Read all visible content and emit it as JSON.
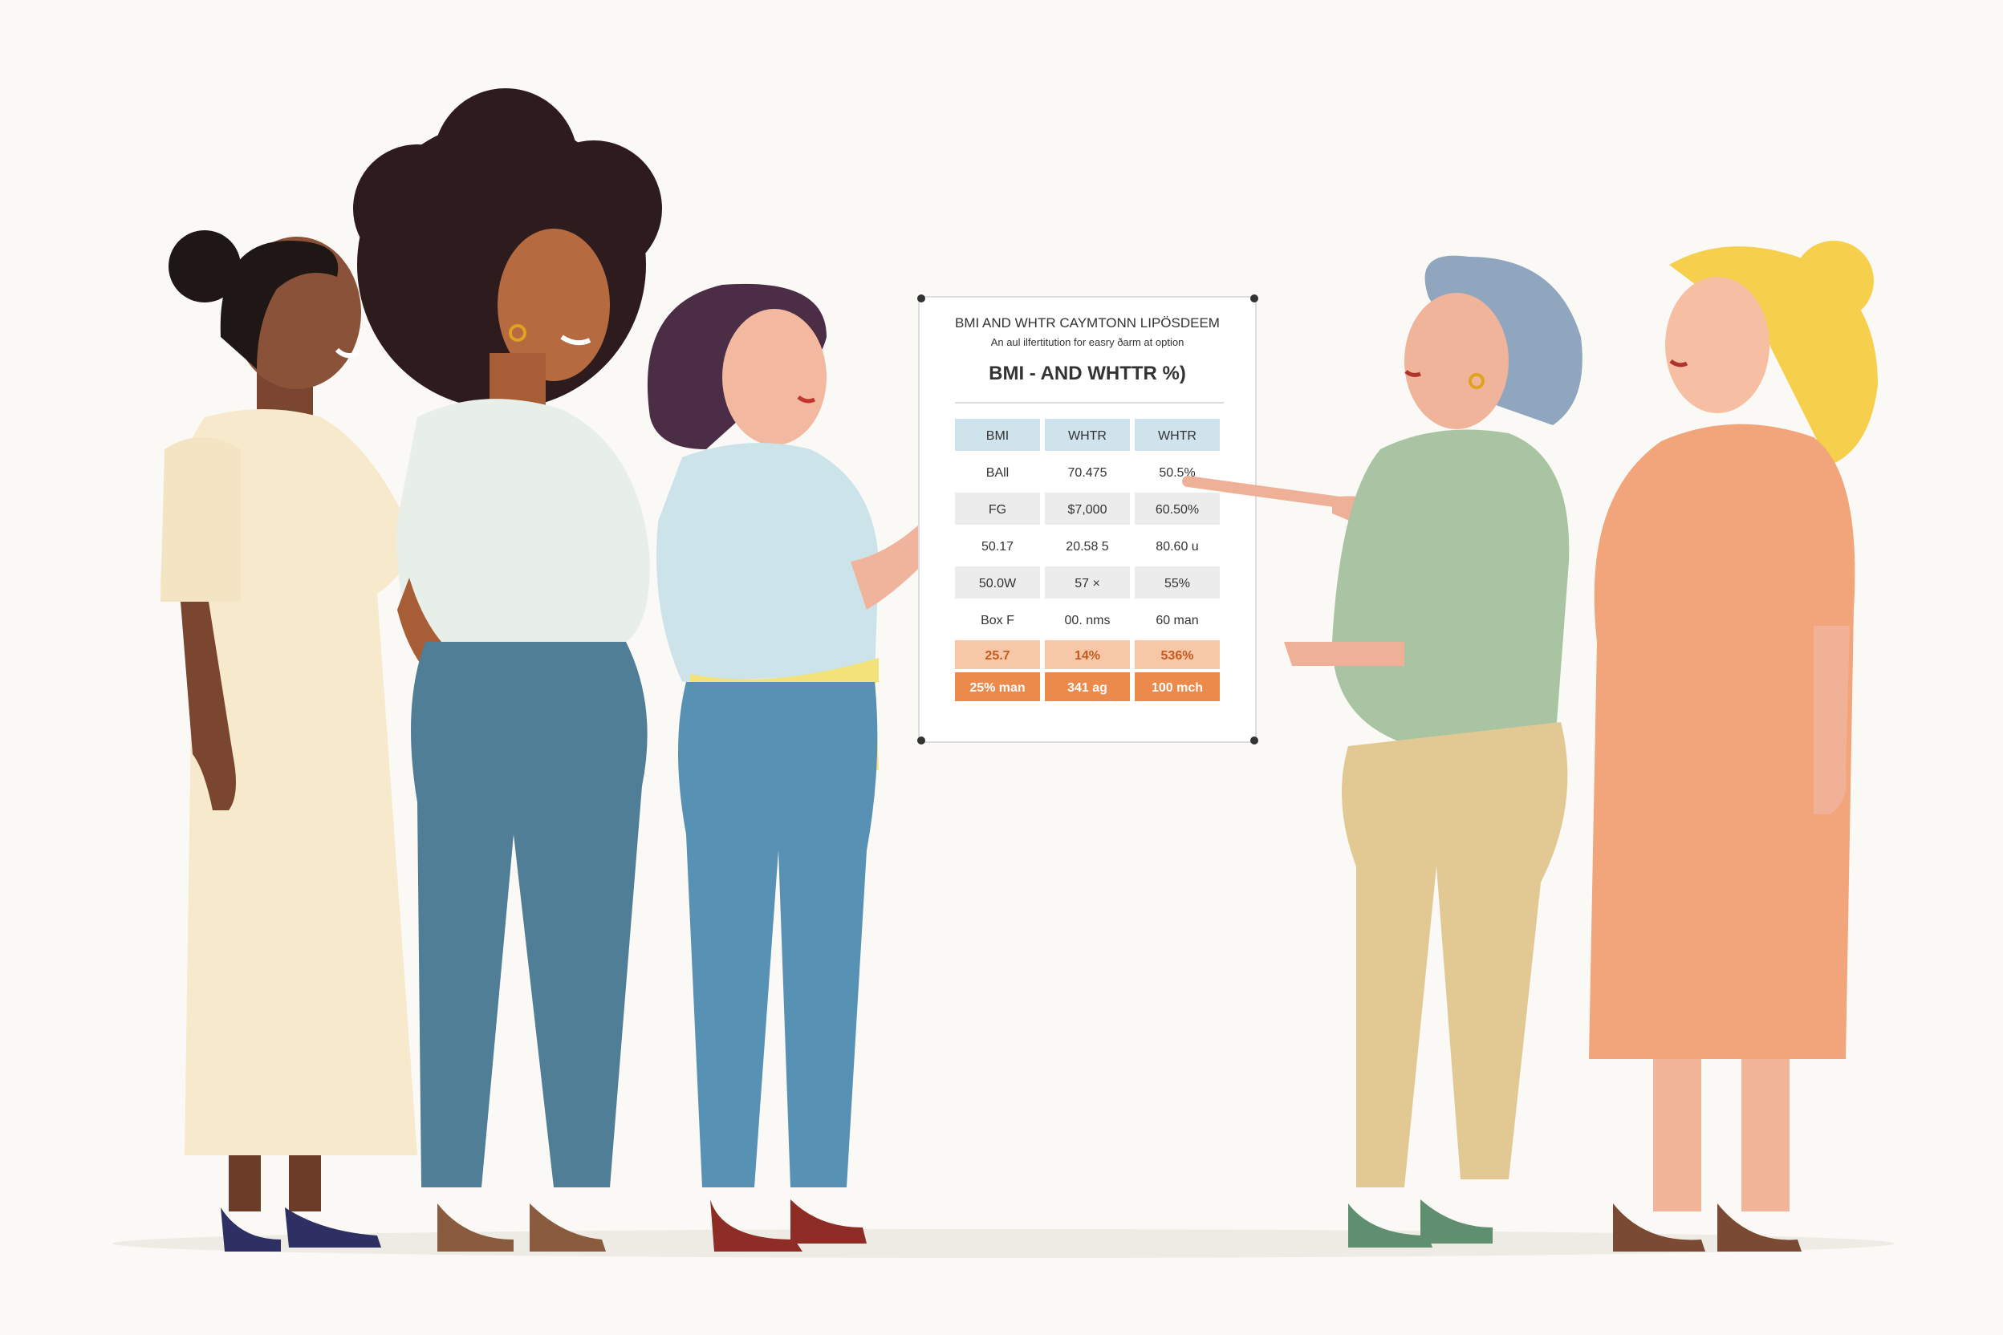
{
  "poster": {
    "title": "BMI AND WHTR CAYMTONN LIPÖSDEEM",
    "subtitle": "An aul ilfertitution for easry ðarm at option",
    "heading": "BMI - AND WHTTR %)",
    "columns": [
      "BMI",
      "WHTR",
      "WHTR"
    ],
    "rows": [
      [
        "BAll",
        "70.475",
        "50.5%"
      ],
      [
        "FG",
        "$7,000",
        "60.50%"
      ],
      [
        "50.17",
        "20.58 5",
        "80.60 u"
      ],
      [
        "50.0W",
        "57 ×",
        "55%"
      ],
      [
        "Box F",
        "00. nms",
        "60 man"
      ]
    ],
    "highlight_rows": [
      [
        "25.7",
        "14%",
        "536%"
      ],
      [
        "25% man",
        "341 ag",
        "100 mch"
      ]
    ]
  },
  "colors": {
    "background": "#fbf9f5",
    "header_cell": "#cfe3ec",
    "row_shade": "#ececec",
    "highlight_light": "#f6c8a8",
    "highlight_dark": "#ec8a4c",
    "accent_orange": "#e8843f"
  }
}
